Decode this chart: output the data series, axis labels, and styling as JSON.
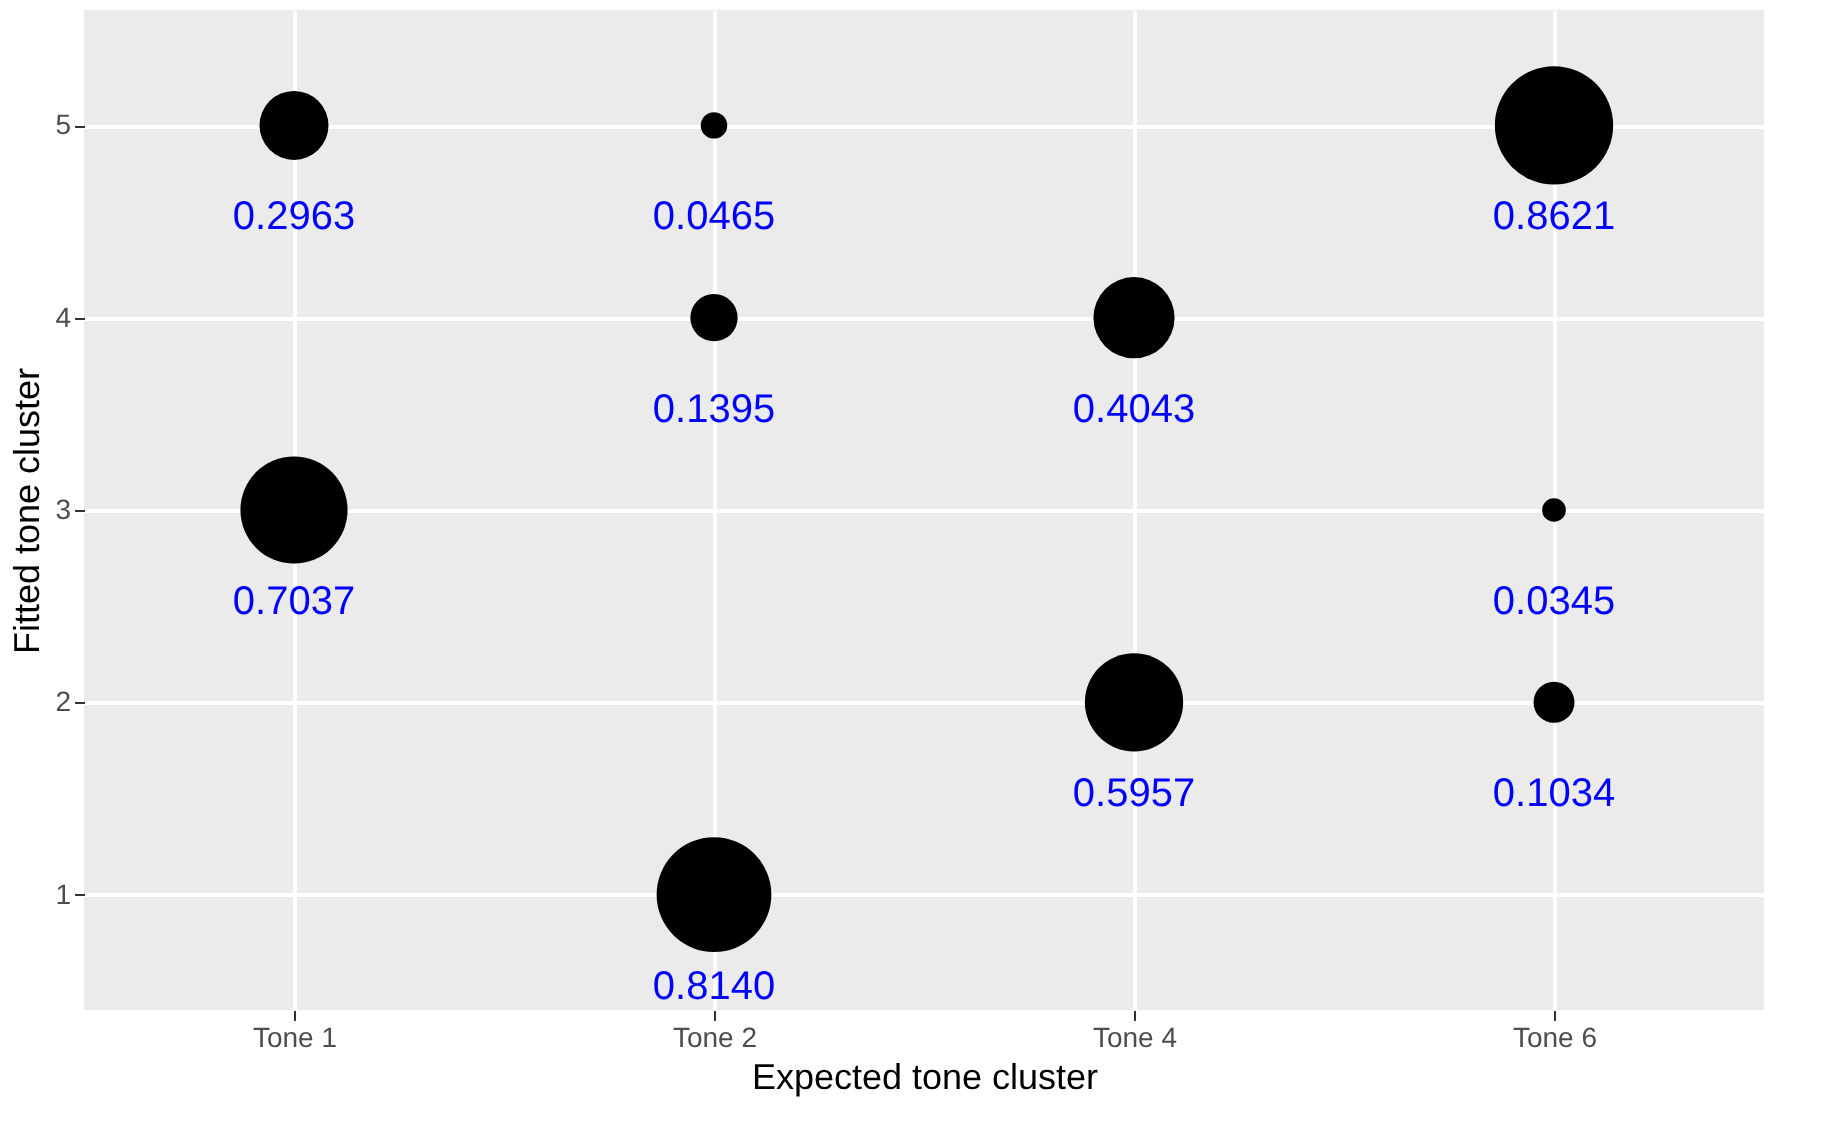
{
  "chart_data": {
    "type": "bubble",
    "xlabel": "Expected tone cluster",
    "ylabel": "Fitted tone cluster",
    "categories": [
      "Tone 1",
      "Tone 2",
      "Tone 4",
      "Tone 6"
    ],
    "ylim": [
      0.4,
      5.6
    ],
    "yticks": [
      1,
      2,
      3,
      4,
      5
    ],
    "grid": true,
    "legend": false,
    "series": [
      {
        "color": "#000000",
        "x": [
          "Tone 1",
          "Tone 1",
          "Tone 2",
          "Tone 2",
          "Tone 2",
          "Tone 4",
          "Tone 4",
          "Tone 6",
          "Tone 6",
          "Tone 6"
        ],
        "values": [
          5,
          3,
          5,
          4,
          1,
          4,
          2,
          5,
          3,
          2
        ],
        "sizes": [
          0.34,
          0.82,
          0.05,
          0.16,
          0.94,
          0.47,
          0.69,
          1,
          0.04,
          0.12
        ]
      }
    ],
    "annotations": [
      {
        "text": "0.2963",
        "x": "Tone 1",
        "y": 5
      },
      {
        "text": "0.7037",
        "x": "Tone 1",
        "y": 3
      },
      {
        "text": "0.0465",
        "x": "Tone 2",
        "y": 5
      },
      {
        "text": "0.1395",
        "x": "Tone 2",
        "y": 4
      },
      {
        "text": "0.8140",
        "x": "Tone 2",
        "y": 1
      },
      {
        "text": "0.4043",
        "x": "Tone 4",
        "y": 4
      },
      {
        "text": "0.5957",
        "x": "Tone 4",
        "y": 2
      },
      {
        "text": "0.8621",
        "x": "Tone 6",
        "y": 5
      },
      {
        "text": "0.0345",
        "x": "Tone 6",
        "y": 3
      },
      {
        "text": "0.1034",
        "x": "Tone 6",
        "y": 2
      }
    ]
  }
}
